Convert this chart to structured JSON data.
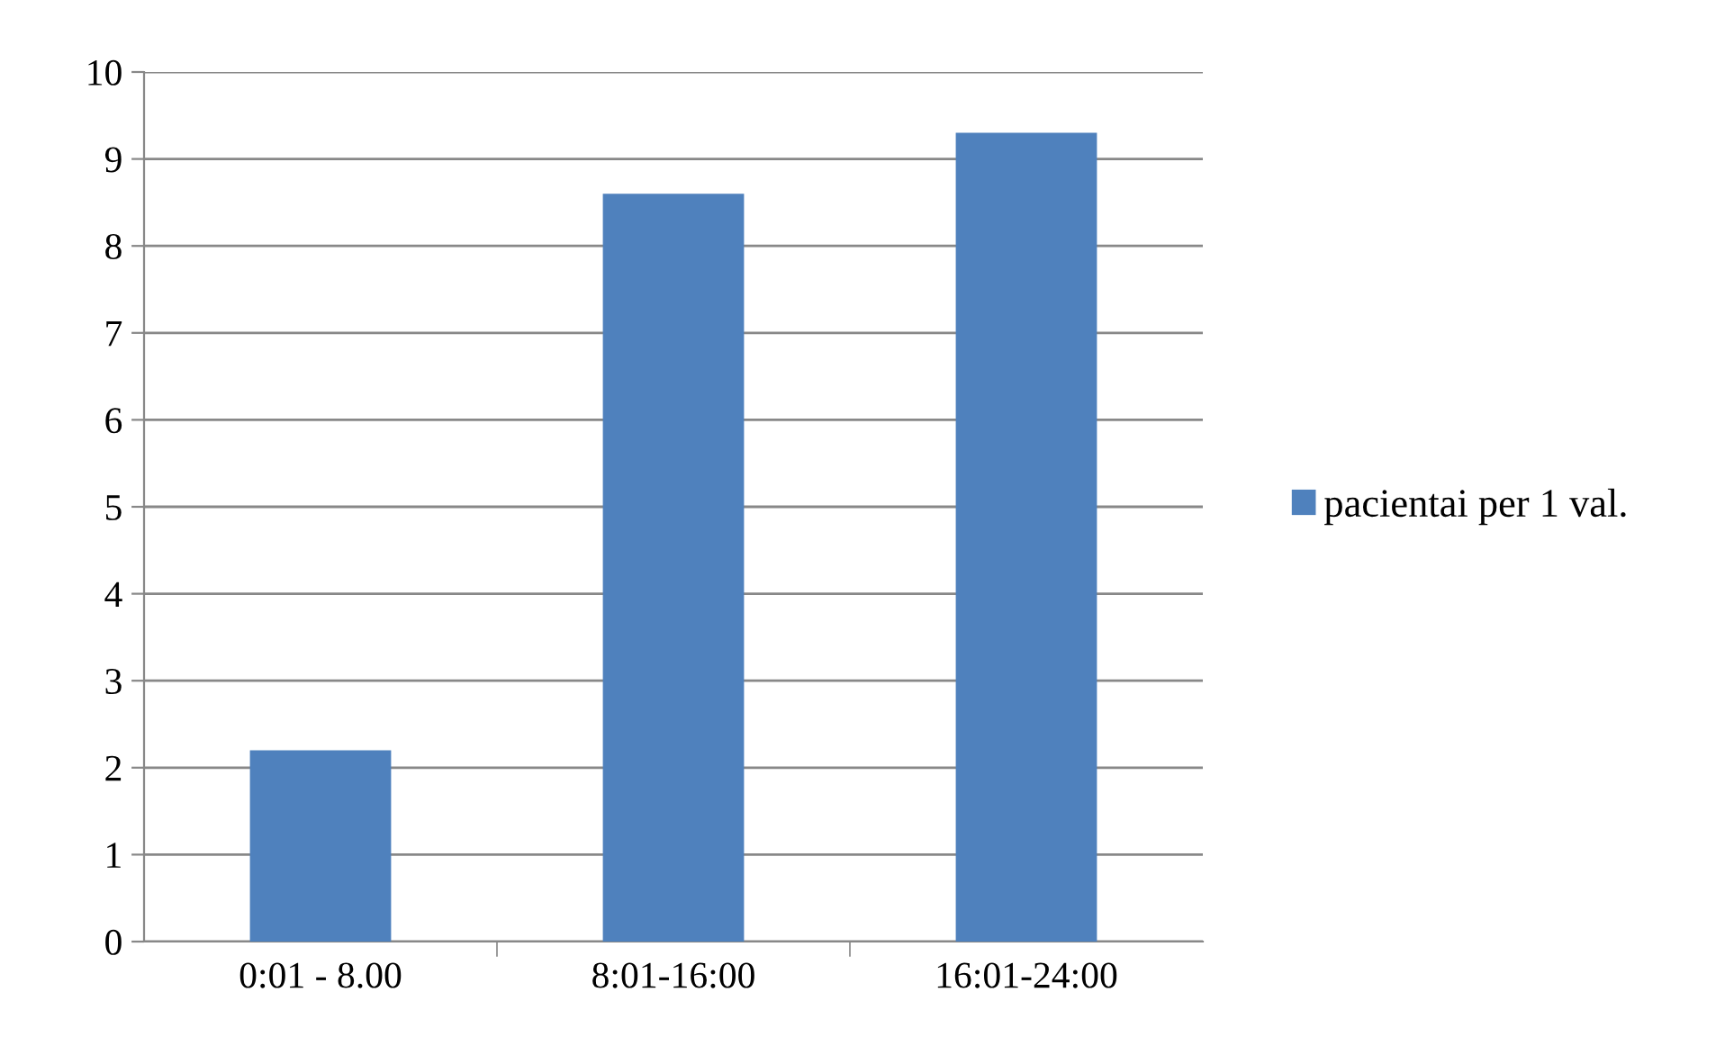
{
  "chart_data": {
    "type": "bar",
    "categories": [
      "0:01 - 8.00",
      "8:01-16:00",
      "16:01-24:00"
    ],
    "series": [
      {
        "name": "pacientai per 1 val.",
        "color": "#4f81bd",
        "values": [
          2.2,
          8.6,
          9.3
        ]
      }
    ],
    "ylim": [
      0,
      10
    ],
    "yticks": [
      0,
      1,
      2,
      3,
      4,
      5,
      6,
      7,
      8,
      9,
      10
    ],
    "grid": "y",
    "legend": "right"
  }
}
